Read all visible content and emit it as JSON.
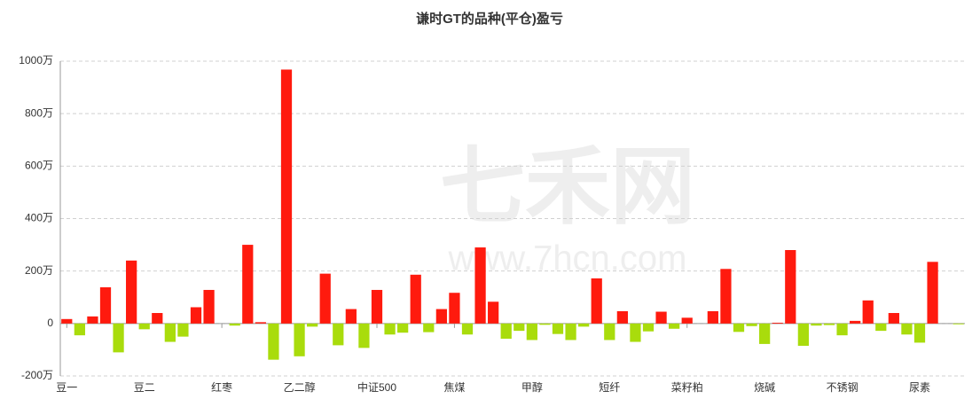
{
  "chart_data": {
    "type": "bar",
    "title": "谦时GT的品种(平仓)盈亏",
    "watermark": [
      "七禾网",
      "www.7hcn.com"
    ],
    "categories": [
      "豆一",
      null,
      null,
      null,
      null,
      null,
      "豆二",
      null,
      null,
      null,
      null,
      null,
      "红枣",
      null,
      null,
      null,
      null,
      null,
      "乙二醇",
      null,
      null,
      null,
      null,
      null,
      "中证500",
      null,
      null,
      null,
      null,
      null,
      "焦煤",
      null,
      null,
      null,
      null,
      null,
      "甲醇",
      null,
      null,
      null,
      null,
      null,
      "短纤",
      null,
      null,
      null,
      null,
      null,
      "菜籽粕",
      null,
      null,
      null,
      null,
      null,
      "烧碱",
      null,
      null,
      null,
      null,
      null,
      "不锈钢",
      null,
      null,
      null,
      null,
      null,
      "尿素",
      null,
      null,
      null
    ],
    "values": [
      17,
      -45,
      27,
      138,
      -110,
      240,
      -22,
      40,
      -70,
      -50,
      62,
      128,
      0,
      -8,
      300,
      5,
      -138,
      968,
      -125,
      -12,
      190,
      -83,
      55,
      -93,
      128,
      -42,
      -35,
      186,
      -33,
      55,
      117,
      -42,
      290,
      83,
      -58,
      -28,
      -63,
      -5,
      -40,
      -63,
      -12,
      172,
      -63,
      47,
      -70,
      -30,
      45,
      -20,
      22,
      0,
      47,
      208,
      -32,
      -10,
      -78,
      3,
      280,
      -85,
      -8,
      -6,
      -45,
      10,
      88,
      -28,
      40,
      -42,
      -73,
      235,
      0,
      -3
    ],
    "positive_color": "#ff1a0e",
    "negative_color": "#a9dc0c",
    "ylim": [
      -200,
      1000
    ],
    "yticks": [
      {
        "value": -200,
        "label": "-200万"
      },
      {
        "value": 0,
        "label": "0"
      },
      {
        "value": 200,
        "label": "200万"
      },
      {
        "value": 400,
        "label": "400万"
      },
      {
        "value": 600,
        "label": "600万"
      },
      {
        "value": 800,
        "label": "800万"
      },
      {
        "value": 1000,
        "label": "1000万"
      }
    ],
    "grid": true
  }
}
